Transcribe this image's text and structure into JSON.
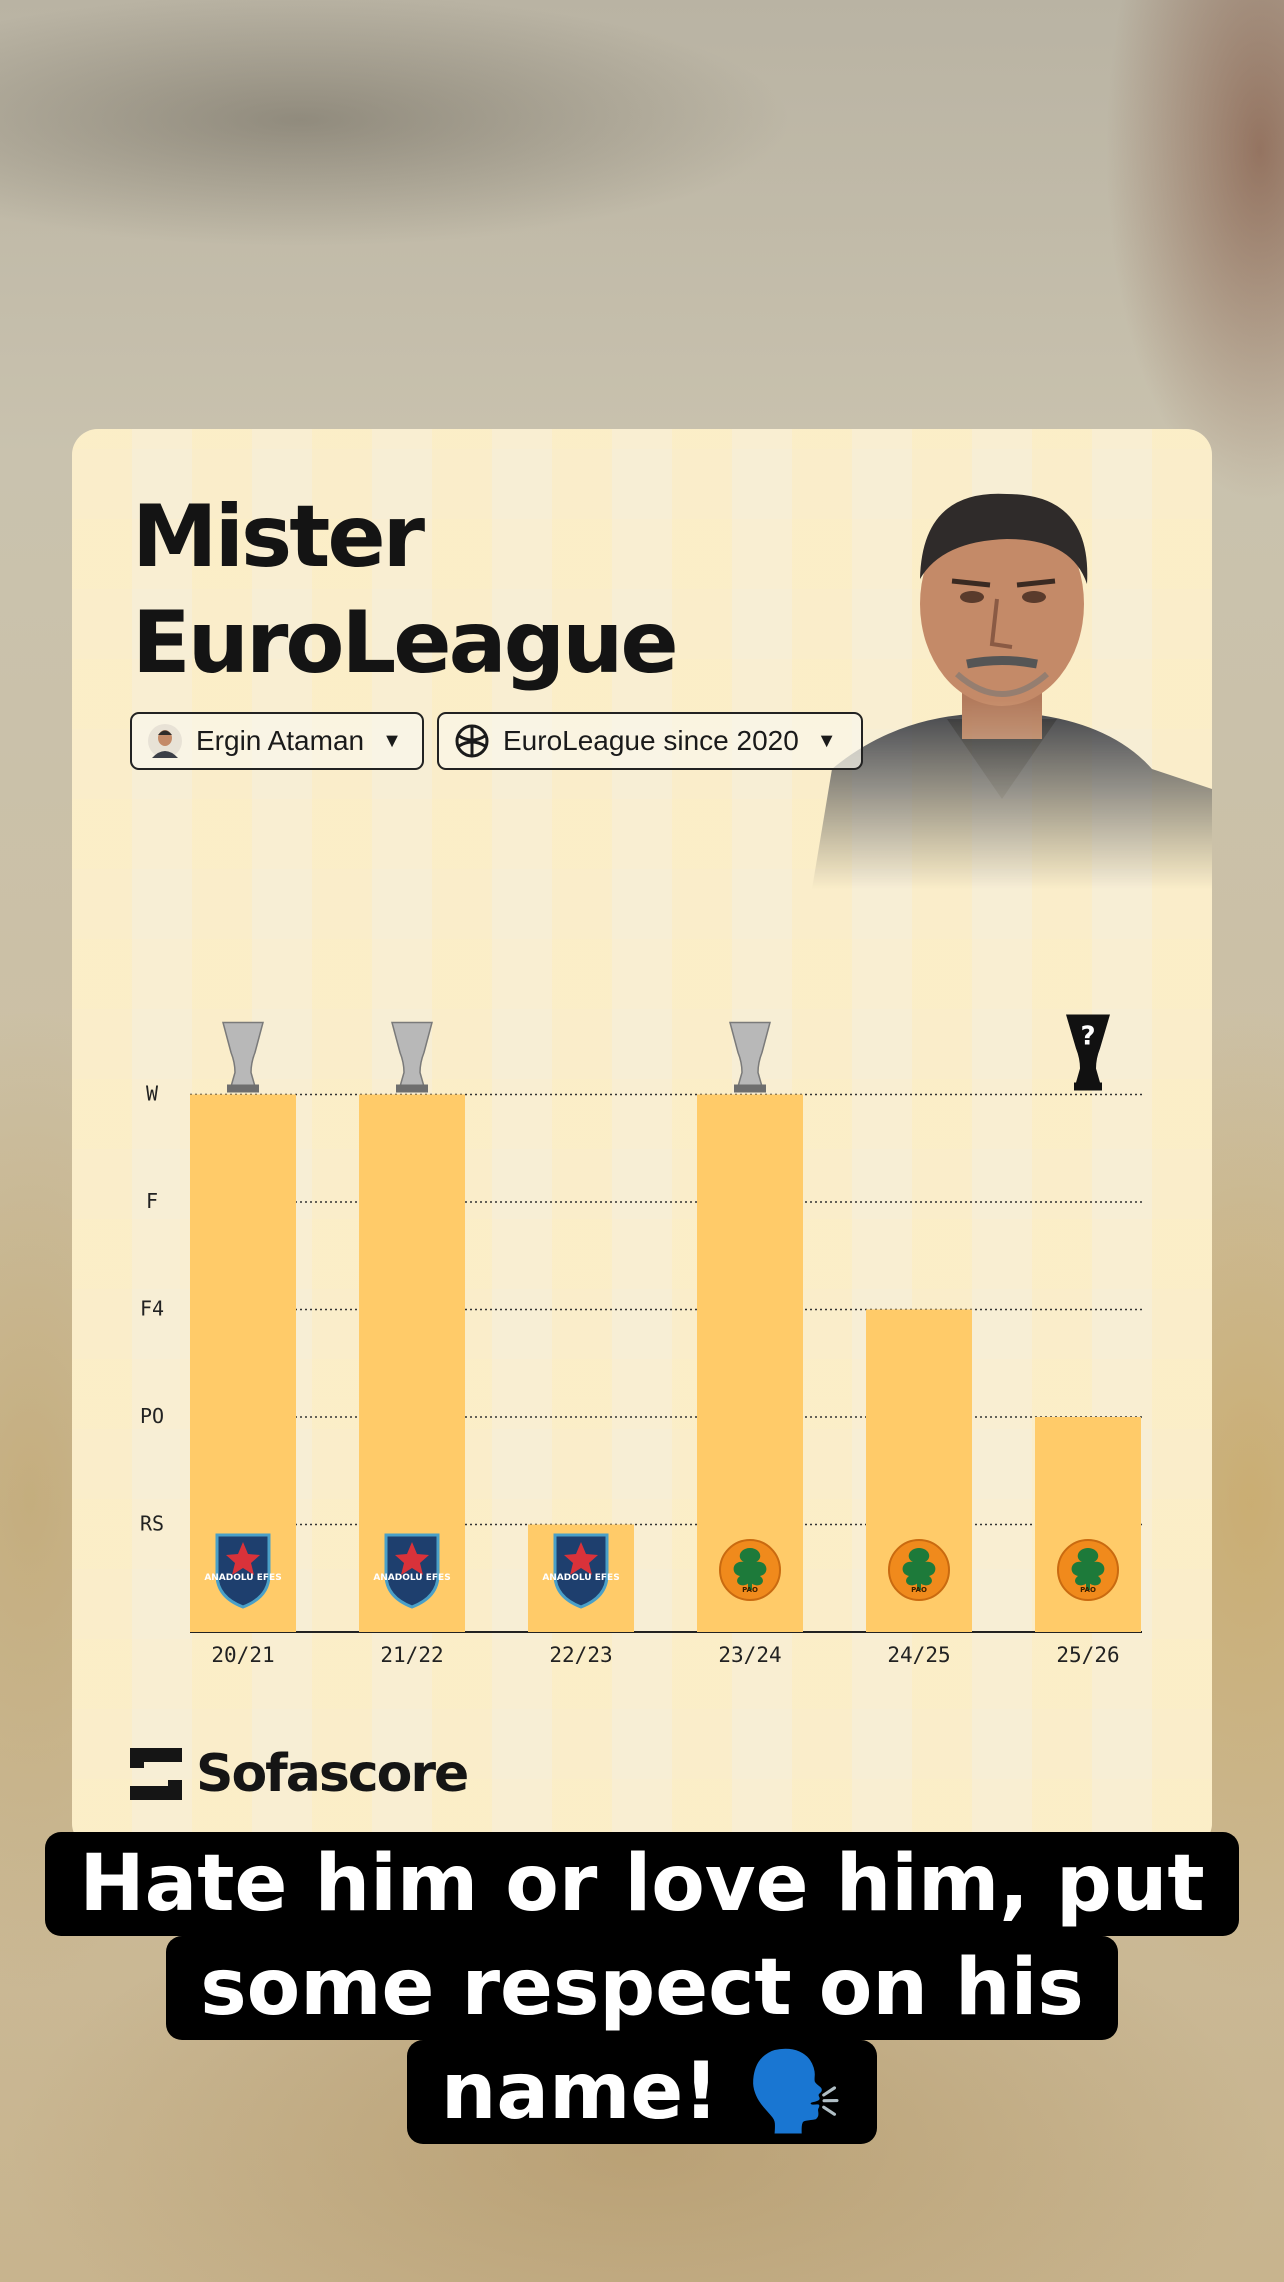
{
  "title": {
    "line1": "Mister",
    "line2": "EuroLeague"
  },
  "filters": {
    "coach": "Ergin Ataman",
    "competition": "EuroLeague since 2020"
  },
  "icons": {
    "coach_avatar": "avatar",
    "competition": "euroleague-logo-icon",
    "dropdown": "caret-down-icon",
    "trophy": "trophy-icon",
    "unknown_trophy": "question-trophy-icon"
  },
  "colors": {
    "bar": "#ffcb69",
    "efes": "#1e3f6e",
    "panathinaikos": "#f08a1c",
    "text": "#141414"
  },
  "chart_data": {
    "type": "bar",
    "ylabel": "",
    "xlabel": "",
    "y_levels": [
      "RS",
      "PO",
      "F4",
      "F",
      "W"
    ],
    "categories": [
      "20/21",
      "21/22",
      "22/23",
      "23/24",
      "24/25",
      "25/26"
    ],
    "values": [
      5,
      5,
      1,
      5,
      3,
      2
    ],
    "ylim": [
      0,
      5
    ],
    "teams": [
      "Anadolu Efes",
      "Anadolu Efes",
      "Anadolu Efes",
      "Panathinaikos",
      "Panathinaikos",
      "Panathinaikos"
    ],
    "team_badge_text": [
      "ANADOLU EFES",
      "ANADOLU EFES",
      "ANADOLU EFES",
      "PAO",
      "PAO",
      "PAO"
    ],
    "markers": [
      "trophy",
      "trophy",
      "",
      "trophy",
      "",
      "question"
    ],
    "grid": true
  },
  "brand": {
    "name": "Sofascore"
  },
  "caption": {
    "line1": "Hate him or love him, put",
    "line2": "some respect on his",
    "line3": "name! 🗣️"
  }
}
